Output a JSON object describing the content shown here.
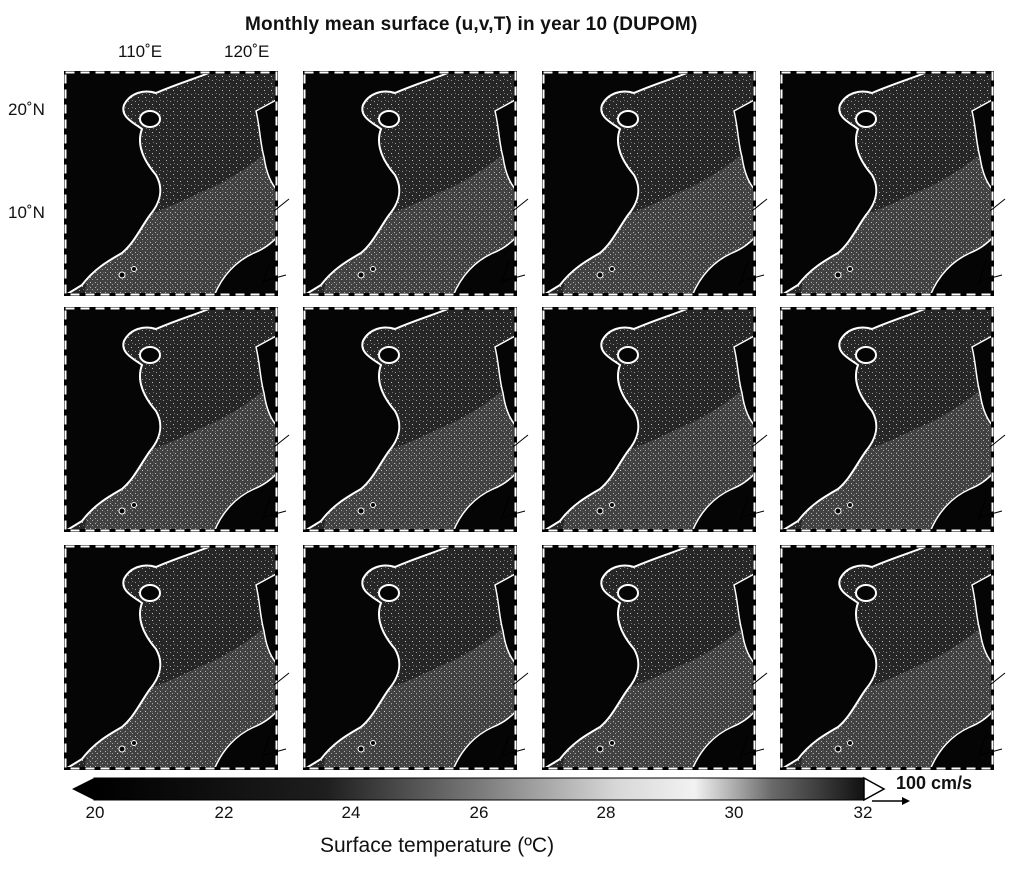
{
  "title": "Monthly mean surface (u,v,T) in year 10 (DUPOM)",
  "lon_labels": [
    "110˚E",
    "120˚E"
  ],
  "lat_labels": [
    "20˚N",
    "10˚N"
  ],
  "panels": {
    "rows": 3,
    "cols": 4,
    "count": 12
  },
  "colorbar": {
    "ticks": [
      "20",
      "22",
      "24",
      "26",
      "28",
      "30",
      "32"
    ],
    "label": "Surface temperature (ºC)",
    "min": 20,
    "max": 32
  },
  "vector_scale": {
    "label": "100 cm/s"
  },
  "colors": {
    "land": "#050505",
    "sea": "#2a2a2a",
    "coast": "#ffffff",
    "frame": "#ffffff"
  }
}
